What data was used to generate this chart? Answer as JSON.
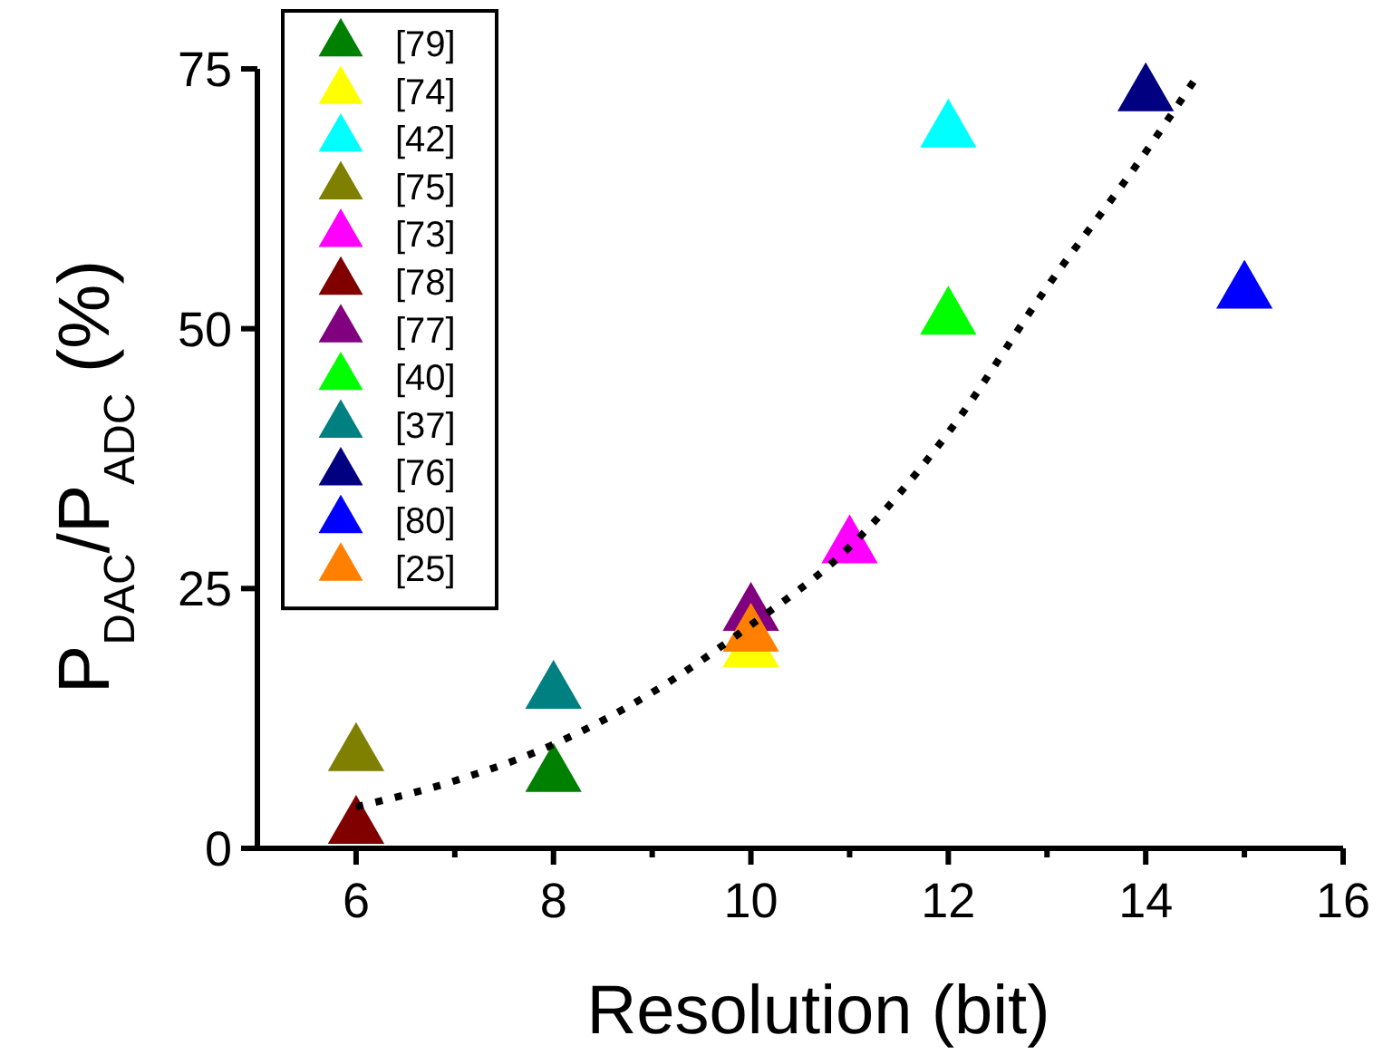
{
  "chart_data": {
    "type": "scatter",
    "xlabel": "Resolution (bit)",
    "ylabel": "P$_{DAC}$/P$_{ADC}$ (%)",
    "marker": "triangle",
    "legend": "top left",
    "grid": false,
    "xlim": [
      5,
      16
    ],
    "xticks": [
      6,
      8,
      10,
      12,
      14,
      16,
      {
        "value": 7,
        "label": null
      },
      {
        "value": 9,
        "label": null
      },
      {
        "value": 11,
        "label": null
      },
      {
        "value": 13,
        "label": null
      },
      {
        "value": 15,
        "label": null
      }
    ],
    "ylim": [
      0,
      75
    ],
    "yticks": [
      0,
      25,
      50,
      75
    ],
    "series": [
      {
        "name": "[79]",
        "color": "#008000",
        "x": [
          8
        ],
        "values": [
          7
        ]
      },
      {
        "name": "[74]",
        "color": "#ffff00",
        "x": [
          10
        ],
        "values": [
          19
        ]
      },
      {
        "name": "[42]",
        "color": "#00ffff",
        "x": [
          12
        ],
        "values": [
          69
        ]
      },
      {
        "name": "[75]",
        "color": "#808000",
        "x": [
          6
        ],
        "values": [
          9
        ]
      },
      {
        "name": "[73]",
        "color": "#ff00ff",
        "x": [
          11
        ],
        "values": [
          29
        ]
      },
      {
        "name": "[78]",
        "color": "#800000",
        "x": [
          6
        ],
        "values": [
          2
        ]
      },
      {
        "name": "[77]",
        "color": "#800080",
        "x": [
          10
        ],
        "values": [
          22.5
        ]
      },
      {
        "name": "[40]",
        "color": "#00ff00",
        "x": [
          12
        ],
        "values": [
          51
        ]
      },
      {
        "name": "[37]",
        "color": "#008080",
        "x": [
          8
        ],
        "values": [
          15
        ]
      },
      {
        "name": "[76]",
        "color": "#000080",
        "x": [
          14
        ],
        "values": [
          72.5
        ]
      },
      {
        "name": "[80]",
        "color": "#0000ff",
        "x": [
          15
        ],
        "values": [
          53.5
        ]
      },
      {
        "name": "[25]",
        "color": "#ff8000",
        "x": [
          10
        ],
        "values": [
          20.5
        ]
      },
      {
        "type": "line",
        "color": "#000000",
        "line_style": "dotted",
        "marker": "none",
        "x": [
          6,
          7,
          8,
          9,
          10,
          11,
          12,
          13,
          14,
          14.5
        ],
        "values": [
          4,
          6.5,
          10,
          15,
          21.5,
          29,
          40,
          54,
          67,
          74
        ]
      }
    ]
  }
}
